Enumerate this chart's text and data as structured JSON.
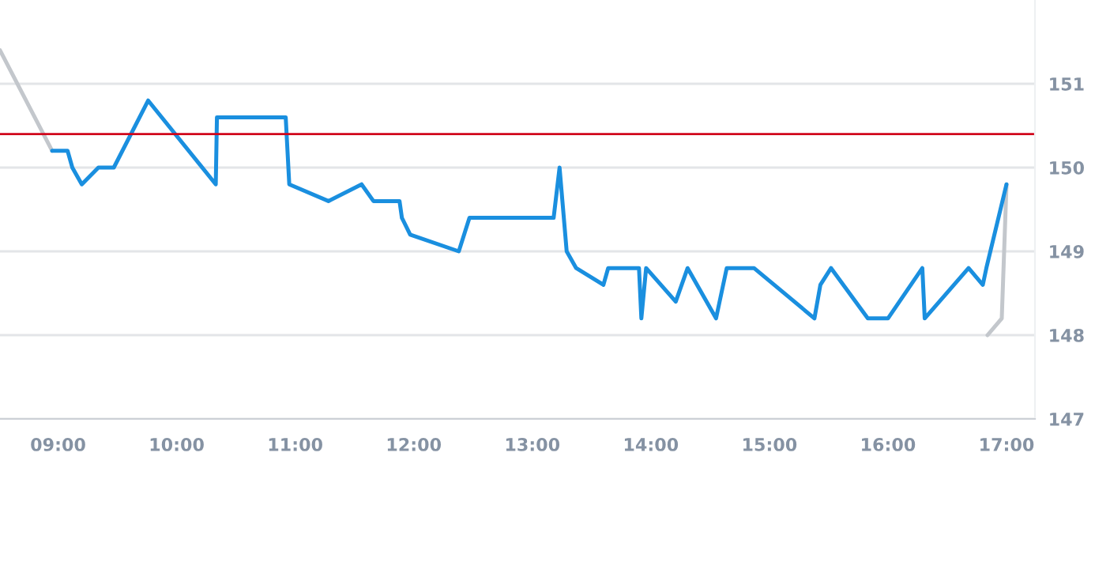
{
  "chart_data": {
    "type": "line",
    "xlim": [
      8.51,
      17.24
    ],
    "ylim": [
      147,
      152
    ],
    "xticks": [
      {
        "value": 9,
        "label": "09:00"
      },
      {
        "value": 10,
        "label": "10:00"
      },
      {
        "value": 11,
        "label": "11:00"
      },
      {
        "value": 12,
        "label": "12:00"
      },
      {
        "value": 13,
        "label": "13:00"
      },
      {
        "value": 14,
        "label": "14:00"
      },
      {
        "value": 15,
        "label": "15:00"
      },
      {
        "value": 16,
        "label": "16:00"
      },
      {
        "value": 17,
        "label": "17:00"
      }
    ],
    "yticks": [
      147,
      148,
      149,
      150,
      151
    ],
    "grid": "y",
    "ref_lines": [
      {
        "axis": "y",
        "value": 150.4,
        "color": "#d0021b"
      }
    ],
    "series": [
      {
        "color": "#c3c7cc",
        "x": [
          8.51,
          8.95,
          8.96,
          16.84,
          16.96,
          17.0
        ],
        "values": [
          151.4,
          150.2,
          null,
          148.0,
          148.2,
          149.8
        ]
      },
      {
        "color": "#1a8fdf",
        "x": [
          8.95,
          9.08,
          9.12,
          9.2,
          9.34,
          9.47,
          9.76,
          10.33,
          10.34,
          10.92,
          10.95,
          11.28,
          11.56,
          11.66,
          11.88,
          11.9,
          11.97,
          12.38,
          12.47,
          13.18,
          13.23,
          13.29,
          13.37,
          13.6,
          13.64,
          13.9,
          13.92,
          13.96,
          14.21,
          14.31,
          14.55,
          14.64,
          14.87,
          15.38,
          15.43,
          15.52,
          15.83,
          16.0,
          16.29,
          16.31,
          16.68,
          16.8,
          16.83,
          17.0
        ],
        "values": [
          150.2,
          150.2,
          150.0,
          149.8,
          150.0,
          150.0,
          150.8,
          149.8,
          150.6,
          150.6,
          149.8,
          149.6,
          149.8,
          149.6,
          149.6,
          149.4,
          149.2,
          149.0,
          149.4,
          149.4,
          150.0,
          149.0,
          148.8,
          148.6,
          148.8,
          148.8,
          148.2,
          148.8,
          148.4,
          148.8,
          148.2,
          148.8,
          148.8,
          148.2,
          148.6,
          148.8,
          148.2,
          148.2,
          148.8,
          148.2,
          148.8,
          148.6,
          148.8,
          149.8
        ]
      }
    ]
  }
}
